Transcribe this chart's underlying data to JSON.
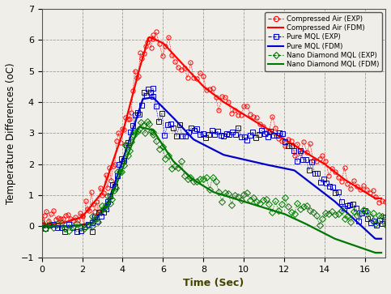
{
  "title": "",
  "xlabel": "Time (Sec)",
  "ylabel": "Temperature Differences (oC)",
  "xlim": [
    0,
    17
  ],
  "ylim": [
    -1,
    7
  ],
  "xticks": [
    0,
    2,
    4,
    6,
    8,
    10,
    12,
    14,
    16
  ],
  "yticks": [
    -1,
    0,
    1,
    2,
    3,
    4,
    5,
    6,
    7
  ],
  "legend": [
    "Compressed Air (EXP)",
    "Compressed Air (FDM)",
    "Pure MQL (EXP)",
    "Pure MQL (FDM)",
    "Nano Diamond MQL (EXP)",
    "Nano Diamond MQL (FDM)"
  ],
  "colors": {
    "compressed_air": "#FF0000",
    "pure_mql": "#0000CC",
    "nano_diamond": "#007700"
  },
  "background": "#F0EEE8"
}
